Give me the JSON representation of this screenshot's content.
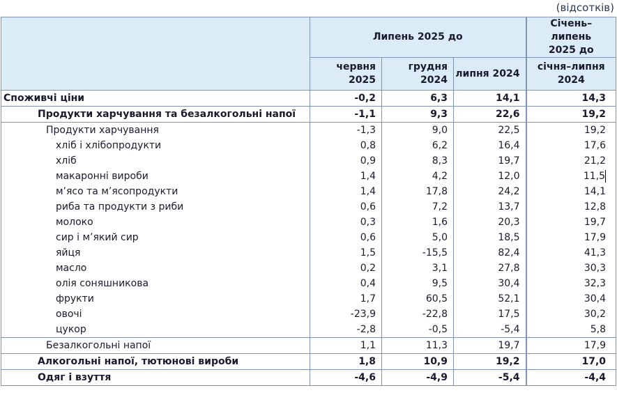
{
  "units": "(відсотків)",
  "header": {
    "group1": "Липень 2025 до",
    "group2": "Січень–липень 2025 до",
    "col1": "червня 2025",
    "col2": "грудня 2024",
    "col3": "липня 2024",
    "col4": "січня–липня 2024"
  },
  "rows": [
    {
      "label": "Споживчі ціни",
      "v1": "-0,2",
      "v2": "6,3",
      "v3": "14,1",
      "v4": "14,3"
    },
    {
      "label": "Продукти харчування та безалкогольні напої",
      "v1": "-1,1",
      "v2": "9,3",
      "v3": "22,6",
      "v4": "19,2"
    },
    {
      "label": "Продукти харчування",
      "v1": "-1,3",
      "v2": "9,0",
      "v3": "22,5",
      "v4": "19,2"
    },
    {
      "label": "хліб і хлібопродукти",
      "v1": "0,8",
      "v2": "6,2",
      "v3": "16,4",
      "v4": "17,6"
    },
    {
      "label": "хліб",
      "v1": "0,9",
      "v2": "8,3",
      "v3": "19,7",
      "v4": "21,2"
    },
    {
      "label": "макаронні вироби",
      "v1": "1,4",
      "v2": "4,2",
      "v3": "12,0",
      "v4": "11,5"
    },
    {
      "label": "м’ясо та м’ясопродукти",
      "v1": "1,4",
      "v2": "17,8",
      "v3": "24,2",
      "v4": "14,1"
    },
    {
      "label": "риба та продукти з риби",
      "v1": "0,6",
      "v2": "7,2",
      "v3": "13,7",
      "v4": "12,8"
    },
    {
      "label": "молоко",
      "v1": "0,3",
      "v2": "1,6",
      "v3": "20,3",
      "v4": "19,7"
    },
    {
      "label": "сир і м’який сир",
      "v1": "0,6",
      "v2": "5,0",
      "v3": "18,5",
      "v4": "17,9"
    },
    {
      "label": "яйця",
      "v1": "1,5",
      "v2": "-15,5",
      "v3": "82,4",
      "v4": "41,3"
    },
    {
      "label": "масло",
      "v1": "0,2",
      "v2": "3,1",
      "v3": "27,8",
      "v4": "30,3"
    },
    {
      "label": "олія соняшникова",
      "v1": "0,4",
      "v2": "9,5",
      "v3": "30,4",
      "v4": "32,3"
    },
    {
      "label": "фрукти",
      "v1": "1,7",
      "v2": "60,5",
      "v3": "52,1",
      "v4": "30,4"
    },
    {
      "label": "овочі",
      "v1": "-23,9",
      "v2": "-22,8",
      "v3": "17,5",
      "v4": "30,2"
    },
    {
      "label": "цукор",
      "v1": "-2,8",
      "v2": "-0,5",
      "v3": "-5,4",
      "v4": "5,8"
    },
    {
      "label": "Безалкогольні напої",
      "v1": "1,1",
      "v2": "11,3",
      "v3": "19,7",
      "v4": "17,9"
    },
    {
      "label": "Алкогольні напої, тютюнові вироби",
      "v1": "1,8",
      "v2": "10,9",
      "v3": "19,2",
      "v4": "17,0"
    },
    {
      "label": "Одяг і взуття",
      "v1": "-4,6",
      "v2": "-4,9",
      "v3": "-5,4",
      "v4": "-4,4"
    }
  ]
}
